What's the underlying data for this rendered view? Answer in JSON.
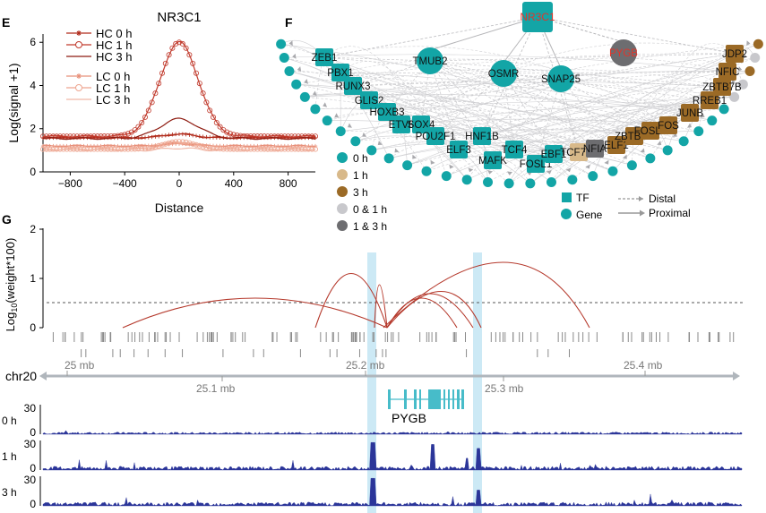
{
  "panels": {
    "e": {
      "letter": "E",
      "title": "NR3C1",
      "ylabel": "Log(signal +1)",
      "xlabel": "Distance",
      "legend": [
        "HC 0 h",
        "HC 1 h",
        "HC 3 h",
        "LC 0 h",
        "LC 1 h",
        "LC 3 h"
      ]
    },
    "f": {
      "letter": "F",
      "hub": "NR3C1",
      "legend_states": [
        "0 h",
        "1 h",
        "3 h",
        "0 & 1 h",
        "1 & 3 h"
      ],
      "legend_types": [
        "TF",
        "Gene"
      ],
      "legend_edges": [
        "Distal",
        "Proximal"
      ]
    },
    "g": {
      "letter": "G",
      "ylabel_pre": "Log",
      "ylabel_sub": "10",
      "ylabel_post": "(weight*100)",
      "yticks": [
        "2",
        "1",
        "0"
      ],
      "chrom": "chr20",
      "coords_top": [
        "25 mb",
        "25.2 mb",
        "25.4 mb"
      ],
      "coords_bottom": [
        "25.1 mb",
        "25.3 mb"
      ],
      "gene": "PYGB",
      "tracks": [
        {
          "label": "0 h",
          "ymax": "30",
          "ymin": "0"
        },
        {
          "label": "1 h",
          "ymax": "30",
          "ymin": "0"
        },
        {
          "label": "3 h",
          "ymax": "30",
          "ymin": "0"
        }
      ]
    }
  },
  "chart_data": [
    {
      "type": "line",
      "title": "NR3C1",
      "xlabel": "Distance",
      "ylabel": "Log(signal +1)",
      "xlim": [
        -1000,
        1000
      ],
      "ylim": [
        0,
        6.3
      ],
      "xticks": [
        -800,
        -400,
        0,
        400,
        800
      ],
      "yticks": [
        0,
        2,
        4,
        6
      ],
      "series": [
        {
          "name": "HC 0 h",
          "color": "#b02a1a",
          "baseline": 1.58,
          "peak": 1.75,
          "width": 110
        },
        {
          "name": "HC 1 h",
          "color": "#c0392b",
          "baseline": 1.65,
          "peak": 6.0,
          "width": 140
        },
        {
          "name": "HC 3 h",
          "color": "#8e1b10",
          "baseline": 1.55,
          "peak": 2.45,
          "width": 140
        },
        {
          "name": "LC 0 h",
          "color": "#e8907a",
          "baseline": 1.2,
          "peak": 1.3,
          "width": 110
        },
        {
          "name": "LC 1 h",
          "color": "#eea58f",
          "baseline": 1.05,
          "peak": 1.4,
          "width": 120
        },
        {
          "name": "LC 3 h",
          "color": "#f0b8a8",
          "baseline": 1.0,
          "peak": 1.1,
          "width": 110
        }
      ]
    }
  ],
  "network": {
    "colors": {
      "teal": "#13a5a6",
      "tan": "#d8b98a",
      "brown": "#9b6a26",
      "lightgray": "#c8c8cc",
      "darkgray": "#6d6d70",
      "red": "#e0352b"
    },
    "nodes": [
      {
        "id": "ZEB1",
        "label": "ZEB1",
        "shape": "square",
        "state": "teal"
      },
      {
        "id": "PBX1",
        "label": "PBX1",
        "shape": "square",
        "state": "teal"
      },
      {
        "id": "RUNX3",
        "label": "RUNX3",
        "shape": "square",
        "state": "teal"
      },
      {
        "id": "GLIS2",
        "label": "GLIS2",
        "shape": "square",
        "state": "teal"
      },
      {
        "id": "HOXB3",
        "label": "HOXB3",
        "shape": "square",
        "state": "teal"
      },
      {
        "id": "ETV6",
        "label": "ETV6",
        "shape": "square",
        "state": "teal"
      },
      {
        "id": "SOX4",
        "label": "SOX4",
        "shape": "square",
        "state": "teal"
      },
      {
        "id": "POU2F1",
        "label": "POU2F1",
        "shape": "square",
        "state": "teal"
      },
      {
        "id": "ELF3",
        "label": "ELF3",
        "shape": "square",
        "state": "teal"
      },
      {
        "id": "HNF1B",
        "label": "HNF1B",
        "shape": "square",
        "state": "teal"
      },
      {
        "id": "MAFK",
        "label": "MAFK",
        "shape": "square",
        "state": "teal"
      },
      {
        "id": "TCF4",
        "label": "TCF4",
        "shape": "square",
        "state": "teal"
      },
      {
        "id": "FOSL1",
        "label": "FOSL1",
        "shape": "square",
        "state": "teal"
      },
      {
        "id": "EBF1",
        "label": "EBF1",
        "shape": "square",
        "state": "teal"
      },
      {
        "id": "TCF7L2",
        "label": "TCF7L2",
        "shape": "square",
        "state": "tan"
      },
      {
        "id": "NFIA",
        "label": "NFIA",
        "shape": "square",
        "state": "darkgray"
      },
      {
        "id": "ELF1",
        "label": "ELF1",
        "shape": "square",
        "state": "brown"
      },
      {
        "id": "ZBTB7C",
        "label": "ZBTB7C",
        "shape": "square",
        "state": "brown"
      },
      {
        "id": "FOSL2",
        "label": "FOSL2",
        "shape": "square",
        "state": "brown"
      },
      {
        "id": "FOS",
        "label": "FOS",
        "shape": "square",
        "state": "brown"
      },
      {
        "id": "JUNB",
        "label": "JUNB",
        "shape": "square",
        "state": "brown"
      },
      {
        "id": "RREB1",
        "label": "RREB1",
        "shape": "square",
        "state": "brown"
      },
      {
        "id": "ZBTB7B",
        "label": "ZBTB7B",
        "shape": "square",
        "state": "brown"
      },
      {
        "id": "NFIC",
        "label": "NFIC",
        "shape": "square",
        "state": "brown"
      },
      {
        "id": "JDP2",
        "label": "JDP2",
        "shape": "square",
        "state": "brown"
      },
      {
        "id": "TMUB2",
        "label": "TMUB2",
        "shape": "circle",
        "state": "teal"
      },
      {
        "id": "OSMR",
        "label": "OSMR",
        "shape": "circle",
        "state": "teal"
      },
      {
        "id": "SNAP25",
        "label": "SNAP25",
        "shape": "circle",
        "state": "teal"
      },
      {
        "id": "PYGB",
        "label": "PYGB",
        "shape": "circle",
        "state": "darkgray",
        "highlight": true
      }
    ]
  }
}
